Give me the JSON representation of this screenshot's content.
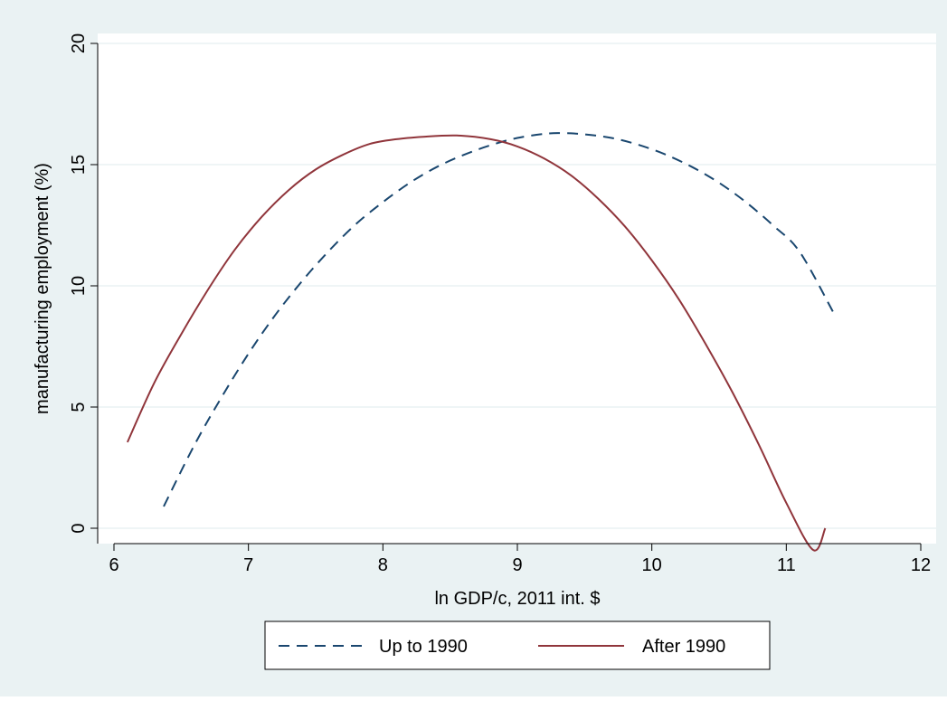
{
  "colors": {
    "outer_background": "#eaf2f3",
    "plot_background": "#ffffff",
    "gridline": "#eaf2f3",
    "axis": "#000000",
    "legend_border": "#000000",
    "series_up_to_1990": "#1a476f",
    "series_after_1990": "#90353b"
  },
  "chart_data": {
    "type": "line",
    "title": "",
    "xlabel": "ln GDP/c, 2011 int. $",
    "ylabel": "manufacturing employment (%)",
    "xlim": [
      6,
      12
    ],
    "ylim": [
      0,
      20
    ],
    "x_ticks": [
      6,
      7,
      8,
      9,
      10,
      11,
      12
    ],
    "y_ticks": [
      0,
      5,
      10,
      15,
      20
    ],
    "x_tick_labels": [
      "6",
      "7",
      "8",
      "9",
      "10",
      "11",
      "12"
    ],
    "y_tick_labels": [
      "0",
      "5",
      "10",
      "15",
      "20"
    ],
    "grid": "horizontal gridlines at y ticks",
    "legend_position": "bottom",
    "series": [
      {
        "name": "Up to 1990",
        "style": "dashed",
        "x": [
          6.37,
          6.6,
          6.8,
          7.0,
          7.2,
          7.4,
          7.6,
          7.8,
          8.0,
          8.2,
          8.4,
          8.6,
          8.8,
          9.0,
          9.2,
          9.33,
          9.5,
          9.7,
          9.9,
          10.1,
          10.3,
          10.5,
          10.7,
          10.9,
          11.1,
          11.35
        ],
        "y": [
          0.9,
          3.45,
          5.4,
          7.2,
          8.8,
          10.2,
          11.45,
          12.55,
          13.45,
          14.25,
          14.9,
          15.4,
          15.8,
          16.1,
          16.27,
          16.3,
          16.25,
          16.1,
          15.82,
          15.42,
          14.9,
          14.25,
          13.45,
          12.5,
          11.4,
          8.9
        ]
      },
      {
        "name": "After 1990",
        "style": "solid",
        "x": [
          6.1,
          6.3,
          6.5,
          6.7,
          6.9,
          7.1,
          7.3,
          7.5,
          7.7,
          7.9,
          8.1,
          8.3,
          8.55,
          8.8,
          9.0,
          9.2,
          9.4,
          9.6,
          9.8,
          10.0,
          10.2,
          10.4,
          10.6,
          10.8,
          11.0,
          11.2,
          11.29
        ],
        "y": [
          3.55,
          6.0,
          8.0,
          9.85,
          11.5,
          12.85,
          13.95,
          14.8,
          15.4,
          15.85,
          16.05,
          16.15,
          16.2,
          16.05,
          15.75,
          15.25,
          14.55,
          13.6,
          12.45,
          11.05,
          9.45,
          7.6,
          5.6,
          3.4,
          1.05,
          -0.9,
          0.0
        ]
      }
    ]
  }
}
